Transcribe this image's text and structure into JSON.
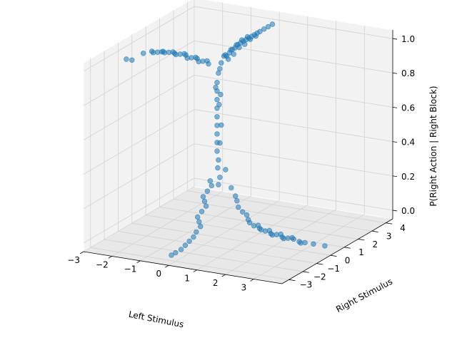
{
  "chart_data": {
    "type": "scatter",
    "projection": "3d",
    "title": "",
    "xlabel": "Left Stimulus",
    "ylabel": "Right Stimulus",
    "zlabel": "P(Right Action | Right Block)",
    "xlim": [
      -3,
      4
    ],
    "ylim": [
      -3.5,
      4.5
    ],
    "zlim": [
      -0.05,
      1.05
    ],
    "x_ticks": [
      "−3",
      "−2",
      "−1",
      "0",
      "1",
      "2",
      "3"
    ],
    "y_ticks": [
      "−3",
      "−2",
      "−1",
      "0",
      "1",
      "2",
      "3",
      "4"
    ],
    "z_ticks": [
      "0.0",
      "0.2",
      "0.4",
      "0.6",
      "0.8",
      "1.0"
    ],
    "grid": true,
    "legend": "none",
    "marker_color": "#1f77b4",
    "pane_color": "#f2f2f2",
    "grid_color": "#d2d2d2",
    "series": [
      {
        "points": [
          [
            0.0,
            0.0,
            0.5
          ],
          [
            0.0,
            0.0,
            0.55
          ],
          [
            0.0,
            0.0,
            0.6
          ],
          [
            0.0,
            0.0,
            0.65
          ],
          [
            0.0,
            0.0,
            0.7
          ],
          [
            0.0,
            0.0,
            0.75
          ],
          [
            0.0,
            0.0,
            0.8
          ],
          [
            0.0,
            0.0,
            0.85
          ],
          [
            0.1,
            0.0,
            0.5
          ],
          [
            0.1,
            0.1,
            0.6
          ],
          [
            0.05,
            0.05,
            0.72
          ],
          [
            0.1,
            0.05,
            0.78
          ],
          [
            -0.05,
            0.0,
            0.82
          ],
          [
            0.0,
            0.0,
            0.45
          ],
          [
            0.05,
            0.0,
            0.4
          ],
          [
            0.0,
            0.05,
            0.35
          ],
          [
            0.1,
            0.0,
            0.3
          ],
          [
            0.0,
            0.1,
            0.25
          ],
          [
            0.0,
            0.5,
            0.98
          ],
          [
            0.0,
            0.7,
            0.97
          ],
          [
            0.0,
            0.9,
            0.98
          ],
          [
            0.0,
            1.1,
            0.99
          ],
          [
            0.0,
            1.3,
            0.99
          ],
          [
            0.0,
            1.5,
            1.0
          ],
          [
            0.0,
            1.7,
            1.0
          ],
          [
            0.0,
            1.9,
            1.0
          ],
          [
            0.0,
            2.1,
            1.0
          ],
          [
            0.0,
            2.3,
            1.0
          ],
          [
            0.0,
            2.5,
            1.0
          ],
          [
            0.0,
            2.7,
            1.0
          ],
          [
            0.0,
            2.9,
            1.0
          ],
          [
            0.0,
            3.1,
            1.0
          ],
          [
            0.0,
            3.4,
            1.0
          ],
          [
            0.0,
            3.7,
            1.0
          ],
          [
            0.0,
            4.0,
            1.0
          ],
          [
            0.1,
            0.6,
            0.96
          ],
          [
            0.1,
            1.0,
            0.97
          ],
          [
            0.1,
            1.4,
            0.99
          ],
          [
            0.1,
            1.8,
            0.99
          ],
          [
            0.1,
            2.2,
            1.0
          ],
          [
            0.1,
            2.6,
            1.0
          ],
          [
            -0.1,
            0.8,
            0.97
          ],
          [
            -0.1,
            1.2,
            0.98
          ],
          [
            -0.1,
            1.6,
            0.99
          ],
          [
            -0.1,
            2.0,
            1.0
          ],
          [
            -0.1,
            2.4,
            1.0
          ],
          [
            0.0,
            0.3,
            0.95
          ],
          [
            0.0,
            0.2,
            0.92
          ],
          [
            0.0,
            0.1,
            0.9
          ],
          [
            -0.3,
            0.0,
            0.95
          ],
          [
            -0.5,
            0.0,
            0.96
          ],
          [
            -0.7,
            0.0,
            0.97
          ],
          [
            -0.9,
            0.0,
            0.97
          ],
          [
            -1.1,
            0.0,
            0.98
          ],
          [
            -1.3,
            0.0,
            0.98
          ],
          [
            -1.5,
            0.0,
            0.98
          ],
          [
            -1.7,
            0.0,
            0.98
          ],
          [
            -1.9,
            0.0,
            0.98
          ],
          [
            -2.1,
            0.0,
            0.97
          ],
          [
            -2.3,
            0.0,
            0.97
          ],
          [
            -2.6,
            0.0,
            0.95
          ],
          [
            -3.0,
            0.0,
            0.9
          ],
          [
            -3.2,
            0.0,
            0.9
          ],
          [
            -0.4,
            0.1,
            0.96
          ],
          [
            -0.8,
            0.1,
            0.97
          ],
          [
            -1.2,
            0.1,
            0.98
          ],
          [
            -1.6,
            0.1,
            0.98
          ],
          [
            -2.0,
            0.1,
            0.97
          ],
          [
            -0.6,
            -0.1,
            0.96
          ],
          [
            -1.0,
            -0.1,
            0.97
          ],
          [
            -1.4,
            -0.1,
            0.98
          ],
          [
            -1.8,
            -0.1,
            0.98
          ],
          [
            -2.2,
            -0.1,
            0.97
          ],
          [
            0.0,
            -0.5,
            0.3
          ],
          [
            0.0,
            -0.7,
            0.25
          ],
          [
            0.0,
            -0.9,
            0.2
          ],
          [
            0.0,
            -1.1,
            0.15
          ],
          [
            0.0,
            -1.3,
            0.1
          ],
          [
            0.0,
            -1.5,
            0.05
          ],
          [
            0.0,
            -1.7,
            0.03
          ],
          [
            0.0,
            -2.0,
            0.02
          ],
          [
            0.0,
            -2.3,
            0.01
          ],
          [
            0.0,
            -2.6,
            0.0
          ],
          [
            0.0,
            -3.0,
            0.0
          ],
          [
            0.0,
            -3.3,
            0.0
          ],
          [
            0.1,
            -0.6,
            0.28
          ],
          [
            0.1,
            -1.0,
            0.18
          ],
          [
            0.1,
            -1.4,
            0.08
          ],
          [
            -0.1,
            -0.8,
            0.22
          ],
          [
            -0.1,
            -1.2,
            0.12
          ],
          [
            0.3,
            0.0,
            0.35
          ],
          [
            0.5,
            0.0,
            0.25
          ],
          [
            0.7,
            0.0,
            0.18
          ],
          [
            0.9,
            0.0,
            0.12
          ],
          [
            1.1,
            0.0,
            0.08
          ],
          [
            1.3,
            0.0,
            0.05
          ],
          [
            1.5,
            0.0,
            0.04
          ],
          [
            1.7,
            0.0,
            0.03
          ],
          [
            1.9,
            0.0,
            0.02
          ],
          [
            2.1,
            0.0,
            0.02
          ],
          [
            2.3,
            0.0,
            0.01
          ],
          [
            2.5,
            0.0,
            0.01
          ],
          [
            2.7,
            0.0,
            0.01
          ],
          [
            2.9,
            0.0,
            0.0
          ],
          [
            3.1,
            0.0,
            0.0
          ],
          [
            3.4,
            0.0,
            0.0
          ],
          [
            3.8,
            0.0,
            0.0
          ],
          [
            0.6,
            0.1,
            0.2
          ],
          [
            1.0,
            0.1,
            0.1
          ],
          [
            1.4,
            0.1,
            0.05
          ],
          [
            1.8,
            0.1,
            0.03
          ],
          [
            2.2,
            0.1,
            0.02
          ],
          [
            2.6,
            0.1,
            0.01
          ],
          [
            0.8,
            -0.1,
            0.15
          ],
          [
            1.2,
            -0.1,
            0.07
          ],
          [
            1.6,
            -0.1,
            0.04
          ],
          [
            2.0,
            -0.1,
            0.02
          ],
          [
            2.4,
            -0.1,
            0.01
          ],
          [
            3.0,
            -0.1,
            0.0
          ]
        ]
      }
    ]
  }
}
